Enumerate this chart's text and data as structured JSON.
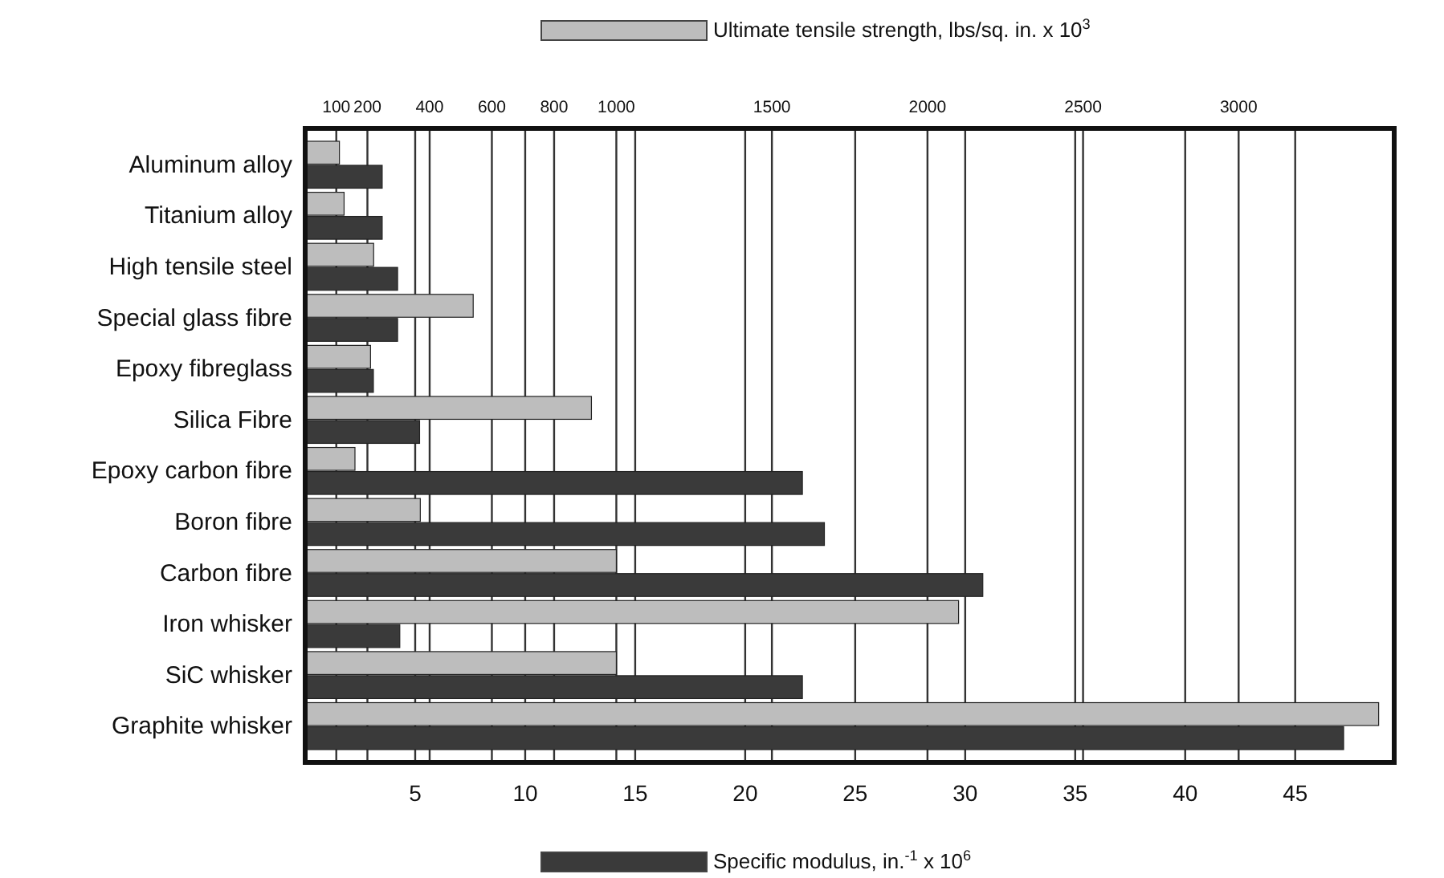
{
  "chart_data": {
    "type": "bar",
    "orientation": "horizontal",
    "categories": [
      "Aluminum alloy",
      "Titanium alloy",
      "High tensile steel",
      "Special glass fibre",
      "Epoxy fibreglass",
      "Silica Fibre",
      "Epoxy carbon fibre",
      "Boron fibre",
      "Carbon fibre",
      "Iron whisker",
      "SiC whisker",
      "Graphite whisker"
    ],
    "series": [
      {
        "color": "#bdbdbd",
        "axis": "x2",
        "values": [
          110,
          125,
          220,
          540,
          210,
          920,
          160,
          370,
          1000,
          2100,
          1000,
          3450
        ]
      },
      {
        "color": "#3a3a3a",
        "values": [
          3.5,
          3.5,
          4.2,
          4.2,
          3.1,
          5.2,
          22.6,
          23.6,
          30.8,
          4.3,
          22.6,
          47.2
        ]
      }
    ],
    "xlim": [
      0,
      49.5
    ],
    "xticks": [
      5,
      10,
      15,
      20,
      25,
      30,
      35,
      40,
      45
    ],
    "x2lim": [
      0,
      3500
    ],
    "x2ticks": [
      100,
      200,
      400,
      600,
      800,
      1000,
      1500,
      2000,
      2500,
      3000
    ],
    "x2label": "Ultimate tensile strength, lbs/sq. in. x 10$^{3}$",
    "xlabel": "Specific modulus, in.$^{-1}$ x 10$^{6}$",
    "grid": "x"
  }
}
